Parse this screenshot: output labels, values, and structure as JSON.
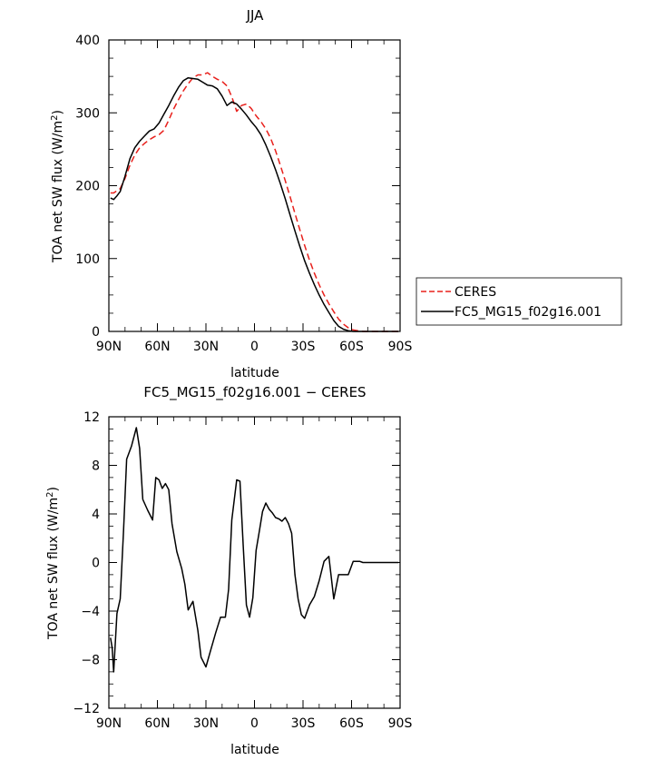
{
  "chart_data": [
    {
      "type": "line",
      "title": "JJA",
      "xlabel": "latitude",
      "ylabel": "TOA net SW flux (W/m²)",
      "ylabel_main": "TOA net SW flux (W/m",
      "ylabel_sup": "2",
      "ylabel_tail": ")",
      "xlim": [
        90,
        -90
      ],
      "ylim": [
        0,
        400
      ],
      "x_ticks": [
        90,
        60,
        30,
        0,
        -30,
        -60,
        -90
      ],
      "x_tick_labels": [
        "90N",
        "60N",
        "30N",
        "0",
        "30S",
        "60S",
        "90S"
      ],
      "y_ticks": [
        0,
        100,
        200,
        300,
        400
      ],
      "y_tick_labels": [
        "0",
        "100",
        "200",
        "300",
        "400"
      ],
      "legend_position": "right",
      "legend": [
        {
          "label": "CERES",
          "color": "#e8201c",
          "dash": "dashed"
        },
        {
          "label": "FC5_MG15_f02g16.001",
          "color": "#000000",
          "dash": "solid"
        }
      ],
      "series": [
        {
          "name": "CERES",
          "color": "#e8201c",
          "x": [
            89,
            87,
            85,
            83,
            80,
            77,
            74,
            71,
            68,
            65,
            62,
            59,
            56,
            53,
            50,
            47,
            44,
            41,
            38,
            35,
            32,
            29,
            26,
            23,
            20,
            17,
            14,
            11,
            8,
            5,
            2,
            -1,
            -4,
            -7,
            -10,
            -13,
            -16,
            -19,
            -22,
            -25,
            -28,
            -31,
            -34,
            -37,
            -40,
            -43,
            -46,
            -49,
            -52,
            -55,
            -58,
            -61,
            -64,
            -67,
            -70,
            -73,
            -76,
            -79,
            -82,
            -85,
            -88,
            -89
          ],
          "y": [
            190,
            190,
            193,
            196,
            210,
            228,
            242,
            252,
            258,
            263,
            267,
            270,
            276,
            290,
            305,
            318,
            330,
            340,
            348,
            352,
            352,
            355,
            350,
            346,
            343,
            337,
            322,
            302,
            310,
            312,
            306,
            296,
            288,
            278,
            265,
            248,
            228,
            207,
            185,
            162,
            140,
            118,
            98,
            80,
            64,
            50,
            38,
            27,
            17,
            10,
            5,
            2,
            1,
            0,
            0,
            0,
            0,
            0,
            0,
            0,
            0,
            0
          ]
        },
        {
          "name": "FC5_MG15_f02g16.001",
          "color": "#000000",
          "x": [
            89,
            87,
            85,
            83,
            80,
            77,
            74,
            71,
            68,
            65,
            62,
            59,
            56,
            53,
            50,
            47,
            44,
            41,
            38,
            35,
            32,
            29,
            26,
            23,
            20,
            17,
            14,
            11,
            8,
            5,
            2,
            -1,
            -4,
            -7,
            -10,
            -13,
            -16,
            -19,
            -22,
            -25,
            -28,
            -31,
            -34,
            -37,
            -40,
            -43,
            -46,
            -49,
            -52,
            -55,
            -58,
            -61,
            -64,
            -67,
            -70,
            -73,
            -76,
            -79,
            -82,
            -85,
            -88,
            -89
          ],
          "y": [
            183,
            181,
            186,
            192,
            213,
            237,
            252,
            261,
            268,
            275,
            278,
            286,
            298,
            310,
            323,
            335,
            344,
            348,
            347,
            346,
            342,
            338,
            337,
            333,
            323,
            310,
            315,
            312,
            305,
            297,
            288,
            280,
            270,
            256,
            240,
            222,
            203,
            182,
            160,
            138,
            117,
            97,
            80,
            64,
            50,
            37,
            26,
            15,
            7,
            3,
            1,
            0,
            0,
            0,
            0,
            0,
            0,
            0,
            0,
            0,
            0,
            0
          ]
        }
      ]
    },
    {
      "type": "line",
      "title": "FC5_MG15_f02g16.001 − CERES",
      "xlabel": "latitude",
      "ylabel": "TOA net SW flux (W/m²)",
      "ylabel_main": "TOA net SW flux (W/m",
      "ylabel_sup": "2",
      "ylabel_tail": ")",
      "xlim": [
        90,
        -90
      ],
      "ylim": [
        -12,
        12
      ],
      "x_ticks": [
        90,
        60,
        30,
        0,
        -30,
        -60,
        -90
      ],
      "x_tick_labels": [
        "90N",
        "60N",
        "30N",
        "0",
        "30S",
        "60S",
        "90S"
      ],
      "y_ticks": [
        -12,
        -8,
        -4,
        0,
        4,
        8,
        12
      ],
      "y_tick_labels": [
        "−12",
        "−8",
        "−4",
        "0",
        "4",
        "8",
        "12"
      ],
      "series": [
        {
          "color": "#000000",
          "x": [
            89,
            88,
            87,
            85,
            83,
            81,
            79,
            76,
            73,
            71,
            69,
            66,
            63,
            61,
            59,
            57,
            55,
            53,
            51,
            48,
            45,
            43,
            41,
            38,
            35,
            33,
            30,
            27,
            24,
            21,
            18,
            16,
            14,
            11,
            9,
            7,
            5,
            3,
            1,
            -1,
            -3,
            -5,
            -7,
            -9,
            -11,
            -13,
            -15,
            -17,
            -19,
            -21,
            -23,
            -25,
            -27,
            -29,
            -31,
            -34,
            -37,
            -40,
            -43,
            -46,
            -49,
            -52,
            -55,
            -58,
            -61,
            -63,
            -65,
            -67,
            -69,
            -71,
            -73,
            -76,
            -79,
            -82,
            -85,
            -88,
            -89
          ],
          "y": [
            -6.2,
            -7.0,
            -9.0,
            -4.2,
            -3.0,
            2.5,
            8.5,
            9.6,
            11.1,
            9.4,
            5.2,
            4.3,
            3.5,
            7.0,
            6.8,
            6.1,
            6.5,
            6.0,
            3.2,
            0.9,
            -0.5,
            -1.8,
            -3.9,
            -3.2,
            -5.6,
            -7.8,
            -8.6,
            -7.2,
            -5.8,
            -4.5,
            -4.5,
            -2.2,
            3.5,
            6.8,
            6.7,
            1.5,
            -3.5,
            -4.5,
            -2.9,
            1.0,
            2.6,
            4.2,
            4.9,
            4.4,
            4.1,
            3.7,
            3.6,
            3.4,
            3.7,
            3.2,
            2.4,
            -1.0,
            -3.0,
            -4.3,
            -4.6,
            -3.5,
            -2.8,
            -1.5,
            0.1,
            0.5,
            -3.0,
            -1.0,
            -1.0,
            -1.0,
            0.1,
            0.1,
            0.1,
            0.0,
            0.0,
            0.0,
            0.0,
            0.0,
            0.0,
            0.0,
            0.0,
            0.0,
            0.0
          ]
        }
      ]
    }
  ]
}
